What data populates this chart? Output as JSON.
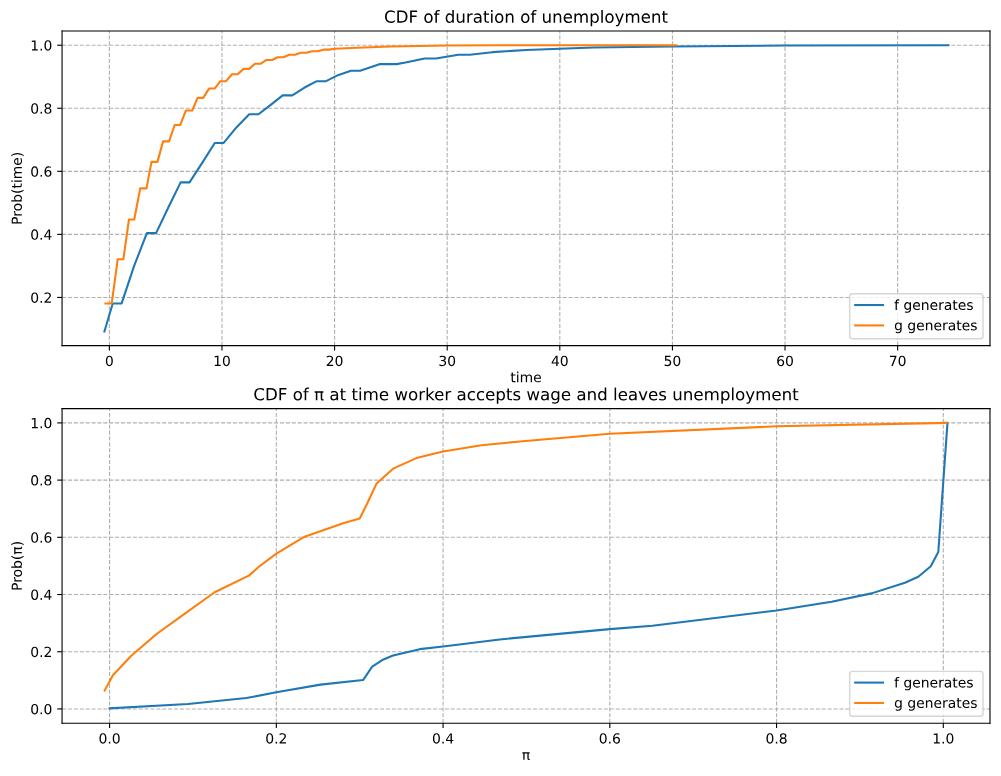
{
  "chart_data": [
    {
      "type": "line",
      "title": "CDF of duration of unemployment",
      "xlabel": "time",
      "ylabel": "Prob(time)",
      "xlim": [
        -4.2,
        78.2
      ],
      "ylim": [
        0.047,
        1.045
      ],
      "xticks": [
        0,
        10,
        20,
        30,
        40,
        50,
        60,
        70
      ],
      "yticks": [
        {
          "value": 0.2,
          "label": "0.2"
        },
        {
          "value": 0.4,
          "label": "0.4"
        },
        {
          "value": 0.6,
          "label": "0.6"
        },
        {
          "value": 0.8,
          "label": "0.8"
        },
        {
          "value": 1.0,
          "label": "1.0"
        }
      ],
      "grid": true,
      "legend": "bottom right",
      "line_style": "solid",
      "marker": "none",
      "series": [
        {
          "name": "f generates",
          "color": "#1f77b4",
          "x": [
            -0.44,
            0.3,
            1.09,
            2.2,
            3.33,
            4.15,
            5.3,
            6.33,
            7.12,
            8.3,
            9.36,
            10.15,
            11.3,
            12.42,
            13.24,
            14.3,
            15.39,
            16.24,
            17.3,
            18.42,
            19.24,
            20.3,
            21.45,
            22.27,
            23.98,
            25.5,
            26.3,
            28.0,
            29.0,
            31.0,
            32.0,
            34.0,
            37.0,
            40.0,
            43.0,
            50.0,
            60.0,
            74.5
          ],
          "values": [
            0.092,
            0.181,
            0.181,
            0.3,
            0.404,
            0.404,
            0.49,
            0.565,
            0.565,
            0.63,
            0.69,
            0.69,
            0.74,
            0.781,
            0.781,
            0.81,
            0.841,
            0.841,
            0.865,
            0.886,
            0.886,
            0.905,
            0.919,
            0.919,
            0.94,
            0.94,
            0.945,
            0.958,
            0.958,
            0.97,
            0.97,
            0.978,
            0.985,
            0.989,
            0.993,
            0.996,
            0.999,
            1.0
          ]
        },
        {
          "name": "g generates",
          "color": "#ff7f0e",
          "x": [
            -0.35,
            0.21,
            0.74,
            1.24,
            1.74,
            2.21,
            2.74,
            3.3,
            3.74,
            4.27,
            4.77,
            5.3,
            5.8,
            6.3,
            6.8,
            7.36,
            7.83,
            8.33,
            8.86,
            9.36,
            9.86,
            10.36,
            10.89,
            11.39,
            11.92,
            12.42,
            12.92,
            13.42,
            13.92,
            14.45,
            14.95,
            15.45,
            15.98,
            16.5,
            16.98,
            17.5,
            18.0,
            18.5,
            19.0,
            19.5,
            20.0,
            22.0,
            25.0,
            30.0,
            35.0,
            40.0,
            50.3
          ],
          "values": [
            0.181,
            0.181,
            0.321,
            0.321,
            0.447,
            0.447,
            0.546,
            0.546,
            0.63,
            0.63,
            0.695,
            0.695,
            0.747,
            0.747,
            0.793,
            0.793,
            0.833,
            0.833,
            0.863,
            0.863,
            0.886,
            0.886,
            0.908,
            0.908,
            0.925,
            0.925,
            0.941,
            0.941,
            0.953,
            0.953,
            0.962,
            0.962,
            0.97,
            0.97,
            0.976,
            0.976,
            0.981,
            0.981,
            0.986,
            0.986,
            0.989,
            0.992,
            0.996,
            0.999,
            1.0,
            1.0,
            1.0
          ]
        }
      ]
    },
    {
      "type": "line",
      "title": "CDF of π at time worker accepts wage and leaves unemployment",
      "xlabel": "π",
      "ylabel": "Prob(π)",
      "xlim": [
        -0.057,
        1.056
      ],
      "ylim": [
        -0.05,
        1.05
      ],
      "xticks": [
        {
          "value": 0.0,
          "label": "0.0"
        },
        {
          "value": 0.2,
          "label": "0.2"
        },
        {
          "value": 0.4,
          "label": "0.4"
        },
        {
          "value": 0.6,
          "label": "0.6"
        },
        {
          "value": 0.8,
          "label": "0.8"
        },
        {
          "value": 1.0,
          "label": "1.0"
        }
      ],
      "yticks": [
        {
          "value": 0.0,
          "label": "0.0"
        },
        {
          "value": 0.2,
          "label": "0.2"
        },
        {
          "value": 0.4,
          "label": "0.4"
        },
        {
          "value": 0.6,
          "label": "0.6"
        },
        {
          "value": 0.8,
          "label": "0.8"
        },
        {
          "value": 1.0,
          "label": "1.0"
        }
      ],
      "grid": true,
      "legend": "bottom right",
      "line_style": "solid",
      "marker": "none",
      "series": [
        {
          "name": "f generates",
          "color": "#1f77b4",
          "x": [
            0.0,
            0.094,
            0.164,
            0.2,
            0.253,
            0.304,
            0.315,
            0.327,
            0.34,
            0.372,
            0.4,
            0.468,
            0.6,
            0.651,
            0.8,
            0.866,
            0.914,
            0.954,
            0.97,
            0.985,
            0.994,
            1.005
          ],
          "values": [
            0.002,
            0.017,
            0.038,
            0.058,
            0.085,
            0.101,
            0.148,
            0.171,
            0.187,
            0.209,
            0.218,
            0.243,
            0.279,
            0.291,
            0.344,
            0.375,
            0.404,
            0.441,
            0.462,
            0.499,
            0.549,
            1.0
          ]
        },
        {
          "name": "g generates",
          "color": "#ff7f0e",
          "x": [
            -0.006,
            0.004,
            0.026,
            0.056,
            0.084,
            0.126,
            0.167,
            0.179,
            0.2,
            0.233,
            0.281,
            0.3,
            0.309,
            0.32,
            0.34,
            0.368,
            0.4,
            0.446,
            0.492,
            0.6,
            0.8,
            1.004
          ],
          "values": [
            0.064,
            0.118,
            0.186,
            0.261,
            0.32,
            0.408,
            0.466,
            0.497,
            0.543,
            0.601,
            0.65,
            0.666,
            0.718,
            0.787,
            0.84,
            0.877,
            0.9,
            0.922,
            0.935,
            0.962,
            0.988,
            1.0
          ]
        }
      ]
    }
  ]
}
